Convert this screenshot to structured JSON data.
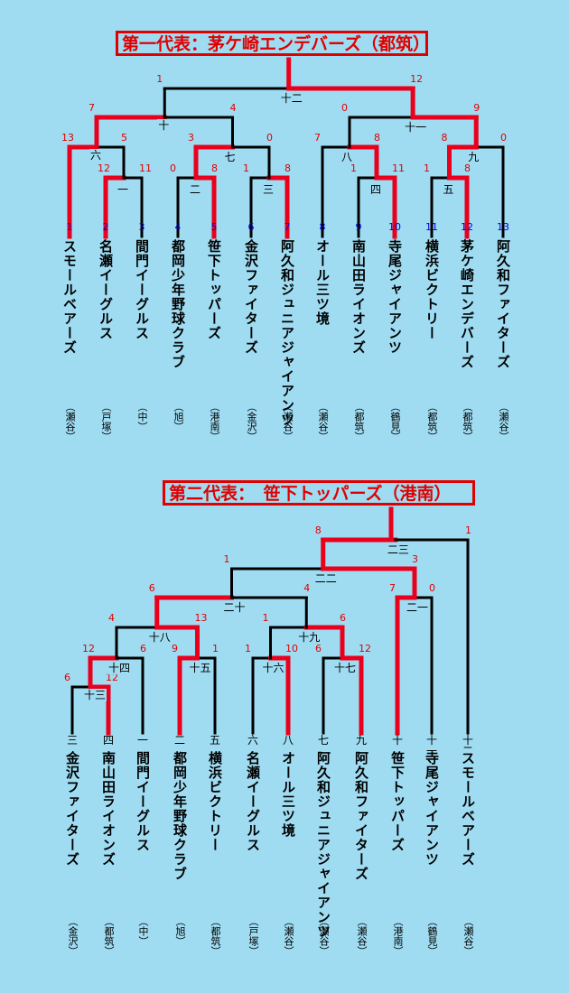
{
  "bracket1": {
    "title": "第一代表：茅ケ崎エンデバーズ（都筑）",
    "teams": [
      {
        "seed": "1",
        "name": "スモールベアーズ",
        "ward": "（瀬谷）"
      },
      {
        "seed": "2",
        "name": "名瀬イーグルス",
        "ward": "（戸塚）"
      },
      {
        "seed": "3",
        "name": "間門イーグルス",
        "ward": "（中）"
      },
      {
        "seed": "4",
        "name": "都岡少年野球クラブ",
        "ward": "（旭）"
      },
      {
        "seed": "5",
        "name": "笹下トッパーズ",
        "ward": "（港南）"
      },
      {
        "seed": "6",
        "name": "金沢ファイターズ",
        "ward": "（金沢）"
      },
      {
        "seed": "7",
        "name": "阿久和ジュニアジャイアンツ",
        "ward": "（瀬谷）"
      },
      {
        "seed": "8",
        "name": "オール三ツ境",
        "ward": "（瀬谷）"
      },
      {
        "seed": "9",
        "name": "南山田ライオンズ",
        "ward": "（都筑）"
      },
      {
        "seed": "10",
        "name": "寺尾ジャイアンツ",
        "ward": "（鶴見）"
      },
      {
        "seed": "11",
        "name": "横浜ビクトリー",
        "ward": "（都筑）"
      },
      {
        "seed": "12",
        "name": "茅ケ崎エンデバーズ",
        "ward": "（都筑）"
      },
      {
        "seed": "13",
        "name": "阿久和ファイターズ",
        "ward": "（瀬谷）"
      }
    ],
    "matches": [
      {
        "id": "一",
        "a": "1",
        "b": "2",
        "sa": "12",
        "sb": "11",
        "win": "a"
      },
      {
        "id": "二",
        "a": "3",
        "b": "4",
        "sa": "0",
        "sb": "8",
        "win": "b"
      },
      {
        "id": "三",
        "a": "5",
        "b": "6",
        "sa": "1",
        "sb": "8",
        "win": "b"
      },
      {
        "id": "四",
        "a": "9",
        "b": "10",
        "sa": "1",
        "sb": "11",
        "win": "b"
      },
      {
        "id": "五",
        "a": "10b",
        "b": "11",
        "sa": "1",
        "sb": "8",
        "win": "b"
      },
      {
        "id": "六",
        "a": "0",
        "b": "一",
        "sa": "13",
        "sb": "5",
        "win": "a"
      },
      {
        "id": "七",
        "a": "二",
        "b": "三",
        "sa": "3",
        "sb": "0",
        "win": "a"
      },
      {
        "id": "八",
        "a": "7",
        "b": "四",
        "sa": "7",
        "sb": "8",
        "win": "b"
      },
      {
        "id": "九",
        "a": "五",
        "b": "12",
        "sa": "8",
        "sb": "0",
        "win": "a"
      },
      {
        "id": "十",
        "a": "六",
        "b": "七",
        "sa": "7",
        "sb": "4",
        "win": "a"
      },
      {
        "id": "十一",
        "a": "八",
        "b": "九",
        "sa": "0",
        "sb": "9",
        "win": "b"
      },
      {
        "id": "十二",
        "a": "十",
        "b": "十一",
        "sa": "1",
        "sb": "12",
        "win": "b"
      }
    ]
  },
  "bracket2": {
    "title": "第二代表：　笹下トッパーズ（港南）",
    "teams": [
      {
        "seed": "三",
        "name": "金沢ファイターズ",
        "ward": "（金沢）"
      },
      {
        "seed": "四",
        "name": "南山田ライオンズ",
        "ward": "（都筑）"
      },
      {
        "seed": "一",
        "name": "間門イーグルス",
        "ward": "（中）"
      },
      {
        "seed": "二",
        "name": "都岡少年野球クラブ",
        "ward": "（旭）"
      },
      {
        "seed": "五",
        "name": "横浜ビクトリー",
        "ward": "（都筑）"
      },
      {
        "seed": "六",
        "name": "名瀬イーグルス",
        "ward": "（戸塚）"
      },
      {
        "seed": "八",
        "name": "オール三ツ境",
        "ward": "（瀬谷）"
      },
      {
        "seed": "七",
        "name": "阿久和ジュニアジャイアンツ",
        "ward": "（瀬谷）"
      },
      {
        "seed": "九",
        "name": "阿久和ファイターズ",
        "ward": "（瀬谷）"
      },
      {
        "seed": "十",
        "name": "笹下トッパーズ",
        "ward": "（港南）"
      },
      {
        "seed": "十一",
        "name": "寺尾ジャイアンツ",
        "ward": "（鶴見）"
      },
      {
        "seed": "十二",
        "name": "スモールベアーズ",
        "ward": "（瀬谷）"
      }
    ],
    "matches": [
      {
        "id": "十三",
        "a": "0",
        "b": "1",
        "sa": "6",
        "sb": "12",
        "win": "b"
      },
      {
        "id": "十四",
        "a": "十三",
        "b": "2",
        "sa": "12",
        "sb": "6",
        "win": "a"
      },
      {
        "id": "十五",
        "a": "3",
        "b": "4",
        "sa": "9",
        "sb": "1",
        "win": "a"
      },
      {
        "id": "十六",
        "a": "5",
        "b": "6",
        "sa": "1",
        "sb": "10",
        "win": "b"
      },
      {
        "id": "十七",
        "a": "7",
        "b": "8",
        "sa": "6",
        "sb": "12",
        "win": "b"
      },
      {
        "id": "十八",
        "a": "十四",
        "b": "十五",
        "sa": "4",
        "sb": "13",
        "win": "b"
      },
      {
        "id": "十九",
        "a": "十六",
        "b": "十七",
        "sa": "1",
        "sb": "6",
        "win": "b"
      },
      {
        "id": "二十",
        "a": "十八",
        "b": "十九",
        "sa": "6",
        "sb": "4",
        "win": "a"
      },
      {
        "id": "二一",
        "a": "9",
        "b": "10",
        "sa": "7",
        "sb": "0",
        "win": "a"
      },
      {
        "id": "二二",
        "a": "二十",
        "b": "二一",
        "sa": "1",
        "sb": "3",
        "win": "b"
      },
      {
        "id": "二三",
        "a": "二二",
        "b": "11",
        "sa": "8",
        "sb": "1",
        "win": "a"
      }
    ]
  }
}
